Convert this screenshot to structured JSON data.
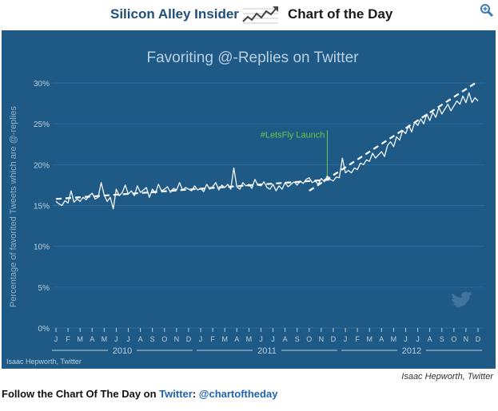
{
  "header": {
    "brand": "Silicon Alley Insider",
    "chart_of_day": "Chart of the Day",
    "icons": {
      "logo": "trend-chart-icon",
      "zoom": "zoom-icon"
    }
  },
  "colors": {
    "panel": "#1f5a86",
    "line": "#ffffff",
    "trend": "#ffffff",
    "annotation": "#6cc24a",
    "grid": "#2e6b98",
    "text": "#b9cfe0"
  },
  "chart_data": {
    "type": "line",
    "title": "Favoriting @-Replies on Twitter",
    "xlabel": "",
    "ylabel": "Percentage of favorited Tweets which are @-replies",
    "ylim": [
      0,
      30
    ],
    "yticks": [
      0,
      5,
      10,
      15,
      20,
      25,
      30
    ],
    "ytick_labels": [
      "0%",
      "5%",
      "10%",
      "15%",
      "20%",
      "25%",
      "30%"
    ],
    "x_range_months": [
      0,
      35
    ],
    "month_labels": [
      "J",
      "F",
      "M",
      "A",
      "M",
      "J",
      "J",
      "A",
      "S",
      "O",
      "N",
      "D",
      "J",
      "F",
      "M",
      "A",
      "M",
      "J",
      "J",
      "A",
      "S",
      "O",
      "N",
      "D",
      "J",
      "F",
      "M",
      "A",
      "M",
      "J",
      "J",
      "A",
      "S",
      "O",
      "N",
      "D"
    ],
    "year_labels": [
      {
        "label": "2010",
        "start": 0,
        "end": 11
      },
      {
        "label": "2011",
        "start": 12,
        "end": 23
      },
      {
        "label": "2012",
        "start": 24,
        "end": 35
      }
    ],
    "series": [
      {
        "x": [
          0,
          0.25,
          0.5,
          0.75,
          1,
          1.25,
          1.5,
          1.75,
          2,
          2.25,
          2.5,
          2.75,
          3,
          3.25,
          3.5,
          3.75,
          4,
          4.25,
          4.5,
          4.75,
          5,
          5.25,
          5.5,
          5.75,
          6,
          6.25,
          6.5,
          6.75,
          7,
          7.25,
          7.5,
          7.75,
          8,
          8.25,
          8.5,
          8.75,
          9,
          9.25,
          9.5,
          9.75,
          10,
          10.25,
          10.5,
          10.75,
          11,
          11.25,
          11.5,
          11.75,
          12,
          12.25,
          12.5,
          12.75,
          13,
          13.25,
          13.5,
          13.75,
          14,
          14.25,
          14.5,
          14.75,
          15,
          15.25,
          15.5,
          15.75,
          16,
          16.25,
          16.5,
          16.75,
          17,
          17.25,
          17.5,
          17.75,
          18,
          18.25,
          18.5,
          18.75,
          19,
          19.25,
          19.5,
          19.75,
          20,
          20.25,
          20.5,
          20.75,
          21,
          21.25,
          21.5,
          21.75,
          22,
          22.25,
          22.5,
          22.75,
          23,
          23.25,
          23.5,
          23.75,
          24,
          24.25,
          24.5,
          24.75,
          25,
          25.25,
          25.5,
          25.75,
          26,
          26.25,
          26.5,
          26.75,
          27,
          27.25,
          27.5,
          27.75,
          28,
          28.25,
          28.5,
          28.75,
          29,
          29.25,
          29.5,
          29.75,
          30,
          30.25,
          30.5,
          30.75,
          31,
          31.25,
          31.5,
          31.75,
          32,
          32.25,
          32.5,
          32.75,
          33,
          33.25,
          33.5,
          33.75,
          34,
          34.25,
          34.5,
          34.75,
          35
        ],
        "y": [
          15.5,
          15.2,
          15.0,
          15.6,
          15.3,
          16.8,
          15.4,
          15.8,
          15.5,
          16.0,
          15.7,
          16.2,
          16.5,
          15.8,
          16.0,
          17.8,
          16.3,
          15.5,
          16.0,
          14.6,
          17.0,
          16.2,
          16.6,
          17.5,
          16.4,
          16.8,
          16.2,
          17.4,
          16.6,
          16.9,
          17.2,
          16.0,
          17.0,
          16.5,
          17.6,
          16.8,
          17.0,
          17.3,
          16.6,
          17.1,
          16.9,
          17.8,
          16.9,
          17.2,
          17.0,
          16.8,
          17.4,
          16.9,
          17.1,
          16.7,
          17.6,
          17.0,
          17.3,
          17.8,
          16.9,
          17.5,
          17.2,
          17.6,
          17.0,
          19.6,
          17.3,
          17.0,
          17.8,
          17.4,
          17.6,
          17.1,
          18.2,
          17.5,
          17.4,
          17.9,
          17.2,
          17.0,
          17.6,
          16.8,
          17.4,
          17.0,
          17.8,
          17.3,
          17.6,
          17.9,
          17.5,
          18.0,
          17.7,
          18.2,
          18.4,
          17.8,
          18.0,
          17.6,
          18.3,
          17.9,
          18.6,
          18.2,
          18.0,
          18.5,
          18.4,
          20.8,
          19.0,
          19.3,
          19.0,
          19.6,
          19.4,
          20.2,
          20.0,
          20.6,
          20.4,
          21.4,
          20.8,
          21.2,
          21.6,
          21.0,
          22.4,
          22.8,
          22.2,
          23.4,
          23.0,
          24.2,
          23.8,
          24.8,
          24.0,
          25.2,
          24.8,
          25.6,
          25.0,
          26.2,
          25.4,
          26.4,
          25.8,
          27.0,
          26.2,
          26.8,
          27.4,
          26.6,
          27.2,
          27.8,
          27.4,
          28.4,
          27.6,
          28.8,
          27.6,
          28.2,
          27.8
        ]
      }
    ],
    "trend_lines": [
      {
        "x": [
          0,
          23
        ],
        "y": [
          15.8,
          18.2
        ]
      },
      {
        "x": [
          21,
          35
        ],
        "y": [
          16.8,
          30.2
        ]
      }
    ],
    "annotations": [
      {
        "text": "#LetsFly Launch",
        "x": 22.5
      }
    ],
    "source": "Isaac Hepworth, Twitter"
  },
  "footer": {
    "source_label": "Isaac Hepworth, Twitter",
    "follow_prefix": "Follow the Chart Of The Day on ",
    "follow_link1": "Twitter",
    "follow_sep": ": ",
    "follow_link2": "@chartoftheday"
  }
}
